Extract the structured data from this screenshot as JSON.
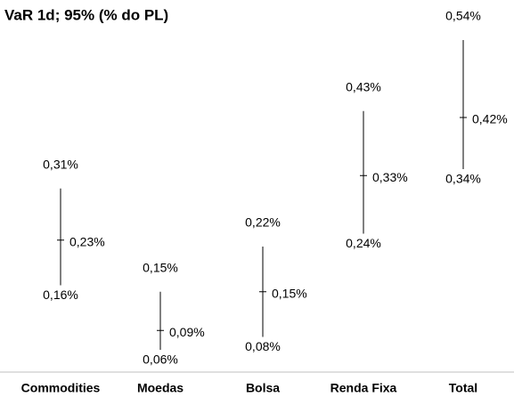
{
  "chart_data": {
    "type": "hilo",
    "title": "VaR 1d; 95% (% do PL)",
    "categories": [
      "Commodities",
      "Moedas",
      "Bolsa",
      "Renda Fixa",
      "Total"
    ],
    "color": "#000000",
    "high": {
      "values": [
        0.31,
        0.15,
        0.22,
        0.43,
        0.54
      ],
      "value_labels": [
        "0,31%",
        "0,15%",
        "0,22%",
        "0,43%",
        "0,54%"
      ]
    },
    "mid": {
      "values": [
        0.23,
        0.09,
        0.15,
        0.33,
        0.42
      ],
      "value_labels": [
        "0,23%",
        "0,09%",
        "0,15%",
        "0,33%",
        "0,42%"
      ]
    },
    "low": {
      "values": [
        0.16,
        0.06,
        0.08,
        0.24,
        0.34
      ],
      "value_labels": [
        "0,16%",
        "0,06%",
        "0,08%",
        "0,24%",
        "0,34%"
      ]
    }
  }
}
